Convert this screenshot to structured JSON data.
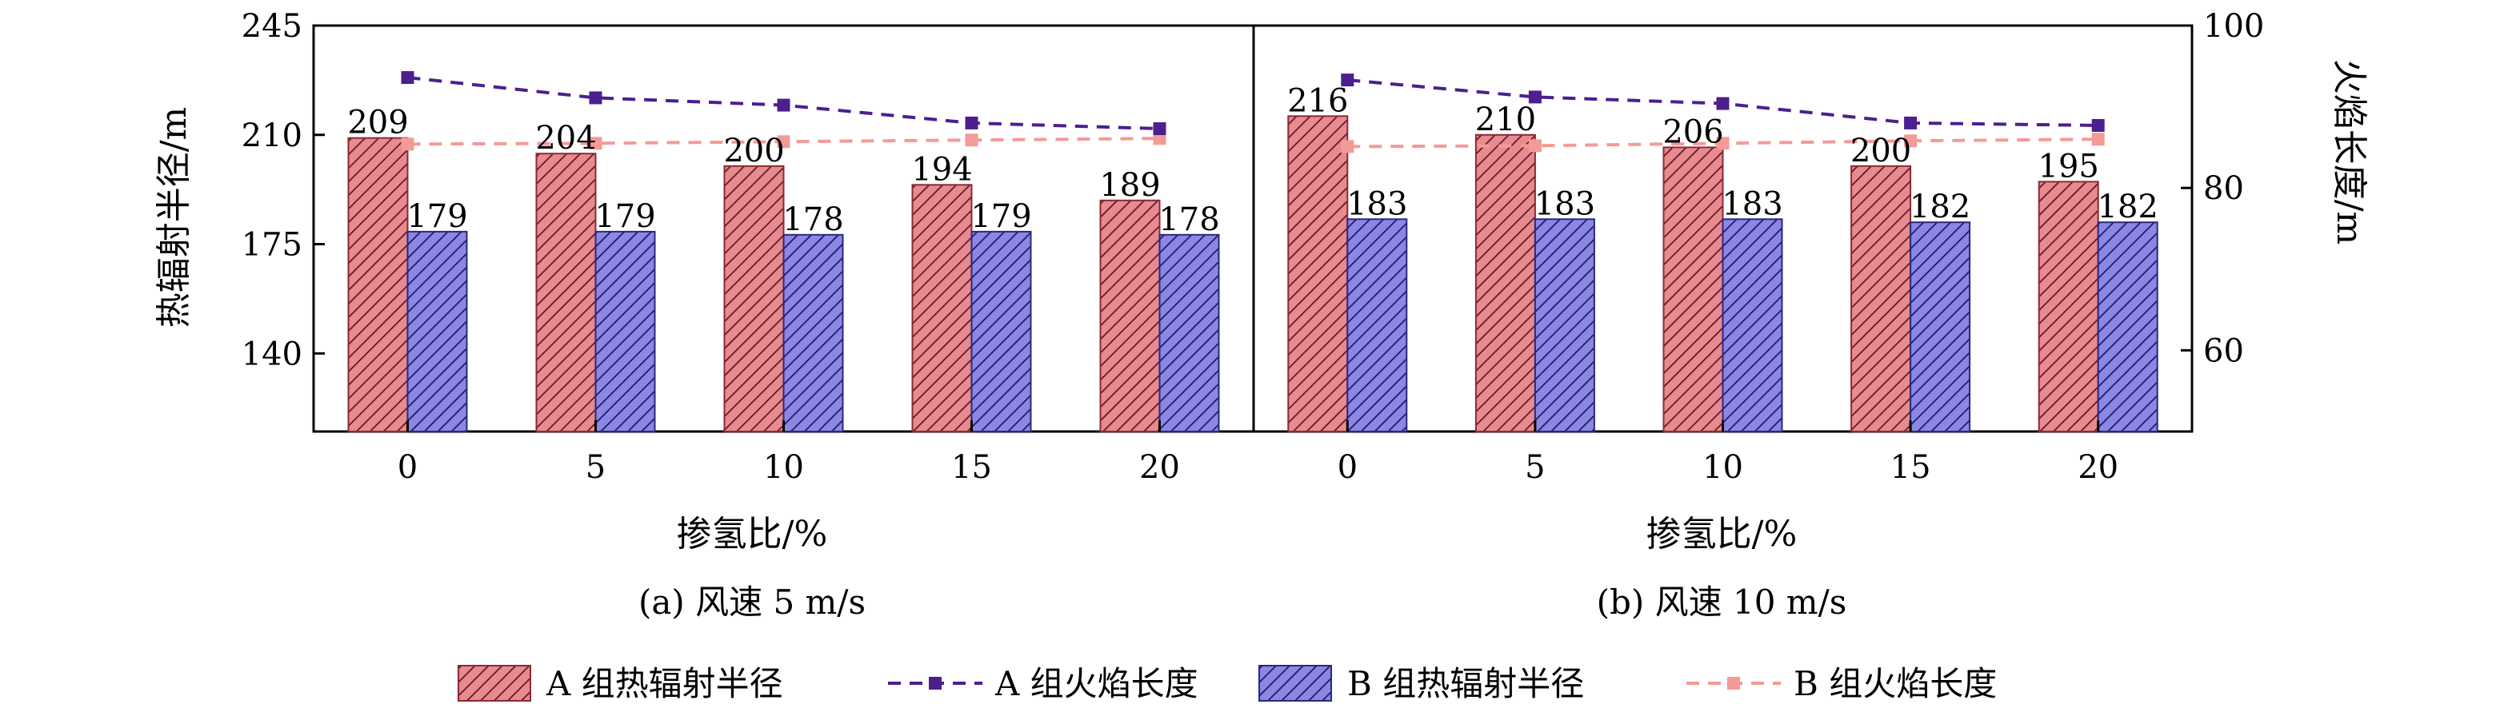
{
  "colors": {
    "group_a_bar": "#e88a8f",
    "group_b_bar": "#8c86e4",
    "group_a_line": "#4b1f8f",
    "group_b_line": "#f49a98",
    "axis": "#000000"
  },
  "legend": [
    {
      "label": "A 组热辐射半径",
      "kind": "bar",
      "color_key": "group_a_bar"
    },
    {
      "label": "A 组火焰长度",
      "kind": "line",
      "color_key": "group_a_line"
    },
    {
      "label": "B 组热辐射半径",
      "kind": "bar",
      "color_key": "group_b_bar"
    },
    {
      "label": "B 组火焰长度",
      "kind": "line",
      "color_key": "group_b_line"
    }
  ],
  "chart_data": [
    {
      "type": "bar",
      "caption": "(a) 风速 5 m/s",
      "categories": [
        "0",
        "5",
        "10",
        "15",
        "20"
      ],
      "xlabel": "掺氢比/%",
      "ylabel": "热辐射半径/m",
      "ylim": [
        115,
        245
      ],
      "yticks": [
        140,
        175,
        210,
        245
      ],
      "y2lim": [
        50,
        100
      ],
      "series": [
        {
          "name": "A 组热辐射半径",
          "type": "bar",
          "axis": "left",
          "values": [
            209,
            204,
            200,
            194,
            189
          ],
          "labels": [
            "209",
            "204",
            "200",
            "194",
            "189"
          ]
        },
        {
          "name": "B 组热辐射半径",
          "type": "bar",
          "axis": "left",
          "values": [
            179,
            179,
            178,
            179,
            178
          ],
          "labels": [
            "179",
            "179",
            "178",
            "179",
            "178"
          ]
        },
        {
          "name": "A 组火焰长度",
          "type": "line",
          "axis": "right",
          "values": [
            93.6,
            91.1,
            90.2,
            88.0,
            87.3
          ]
        },
        {
          "name": "B 组火焰长度",
          "type": "line",
          "axis": "right",
          "values": [
            85.4,
            85.5,
            85.7,
            85.9,
            86.1
          ]
        }
      ]
    },
    {
      "type": "bar",
      "caption": "(b) 风速 10 m/s",
      "categories": [
        "0",
        "5",
        "10",
        "15",
        "20"
      ],
      "xlabel": "掺氢比/%",
      "y2label": "火焰长度/m",
      "ylim": [
        115,
        245
      ],
      "y2lim": [
        50,
        100
      ],
      "y2ticks": [
        60,
        80,
        100
      ],
      "series": [
        {
          "name": "A 组热辐射半径",
          "type": "bar",
          "axis": "left",
          "values": [
            216,
            210,
            206,
            200,
            195
          ],
          "labels": [
            "216",
            "210",
            "206",
            "200",
            "195"
          ]
        },
        {
          "name": "B 组热辐射半径",
          "type": "bar",
          "axis": "left",
          "values": [
            183,
            183,
            183,
            182,
            182
          ],
          "labels": [
            "183",
            "183",
            "183",
            "182",
            "182"
          ]
        },
        {
          "name": "A 组火焰长度",
          "type": "line",
          "axis": "right",
          "values": [
            93.3,
            91.2,
            90.4,
            88.0,
            87.7
          ]
        },
        {
          "name": "B 组火焰长度",
          "type": "line",
          "axis": "right",
          "values": [
            85.1,
            85.2,
            85.5,
            85.8,
            86.0
          ]
        }
      ]
    }
  ]
}
